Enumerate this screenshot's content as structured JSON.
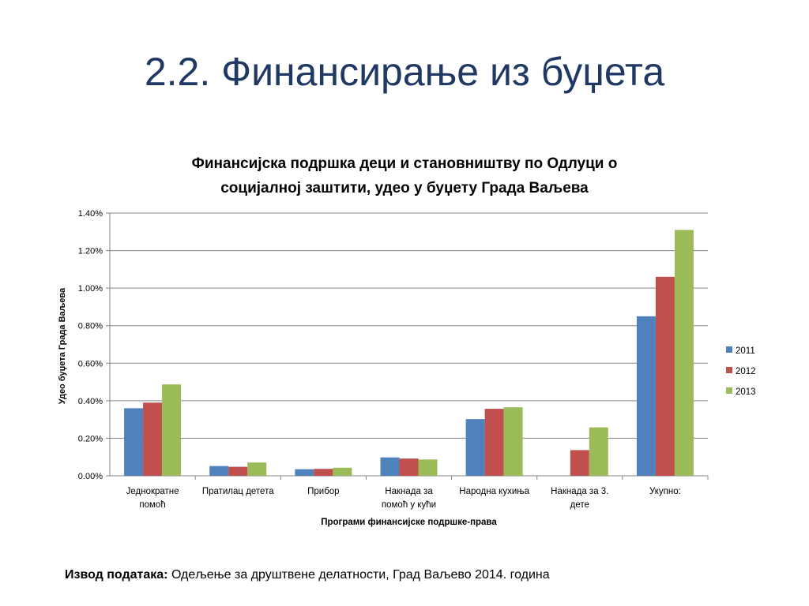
{
  "slide": {
    "title": "2.2. Финансирање из буџета"
  },
  "chart_data": {
    "type": "bar",
    "title_line1": "Финансијска подршка деци и становништву по Одлуци о",
    "title_line2": "социјалној заштити, удео у буџету Града Ваљева",
    "ylabel": "Удео буџета Града Ваљева",
    "xlabel": "Програми финансијске подршке-права",
    "ylim": [
      0,
      0.014
    ],
    "yticks": [
      "0.00%",
      "0.20%",
      "0.40%",
      "0.60%",
      "0.80%",
      "1.00%",
      "1.20%",
      "1.40%"
    ],
    "categories": [
      [
        "Једнократне",
        "помоћ"
      ],
      [
        "Пратилац детета"
      ],
      [
        "Прибор"
      ],
      [
        "Накнада за",
        "помоћ у кући"
      ],
      [
        "Народна кухиња"
      ],
      [
        "Накнада за 3.",
        "дете"
      ],
      [
        "Укупно:"
      ]
    ],
    "series": [
      {
        "name": "2011",
        "color": "#4f81bd",
        "values": [
          0.0036,
          0.00052,
          0.00035,
          0.00098,
          0.00302,
          null,
          0.0085
        ]
      },
      {
        "name": "2012",
        "color": "#c0504d",
        "values": [
          0.0039,
          0.00048,
          0.00037,
          0.00092,
          0.00357,
          0.00137,
          0.0106
        ]
      },
      {
        "name": "2013",
        "color": "#9bbb59",
        "values": [
          0.00487,
          0.00071,
          0.00043,
          0.00087,
          0.00365,
          0.00258,
          0.0131
        ]
      }
    ],
    "grid": true,
    "legend": "right"
  },
  "footer": {
    "label": "Извод података:",
    "text": " Одељење за друштвене делатности, Град Ваљево 2014. година"
  }
}
